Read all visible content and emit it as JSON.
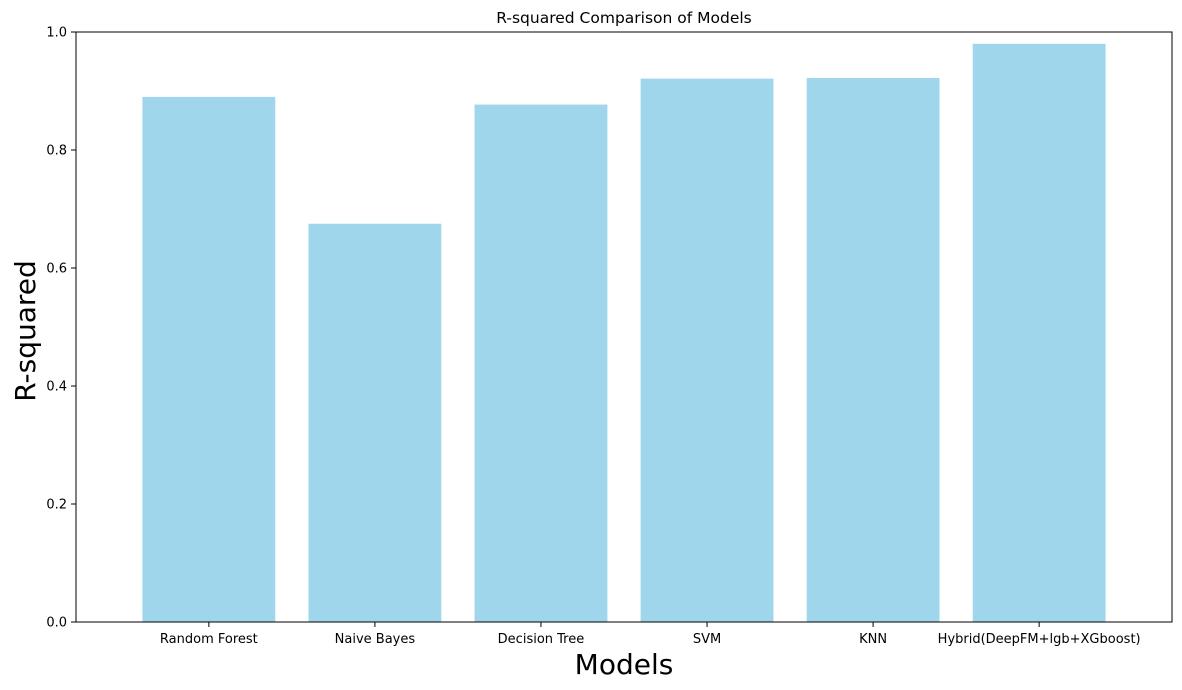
{
  "chart_data": {
    "type": "bar",
    "title": "R-squared Comparison of Models",
    "xlabel": "Models",
    "ylabel": "R-squared",
    "categories": [
      "Random Forest",
      "Naive Bayes",
      "Decision Tree",
      "SVM",
      "KNN",
      "Hybrid(DeepFM+lgb+XGboost)"
    ],
    "values": [
      0.89,
      0.675,
      0.877,
      0.921,
      0.922,
      0.98
    ],
    "ylim": [
      0,
      1.0
    ],
    "yticks": [
      "0.0",
      "0.2",
      "0.4",
      "0.6",
      "0.8",
      "1.0"
    ],
    "bar_color": "#a0d6ec",
    "grid": false,
    "legend": "none"
  }
}
